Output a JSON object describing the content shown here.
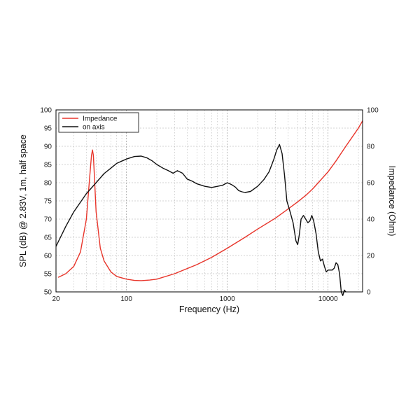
{
  "chart_data": {
    "type": "line",
    "xlabel": "Frequency (Hz)",
    "ylabel_left": "SPL (dB) @ 2.83V, 1m, half space",
    "ylabel_right": "Impedance (Ohm)",
    "x_scale": "log",
    "xlim": [
      20,
      22000
    ],
    "ylim_left": [
      50,
      100
    ],
    "ylim_right": [
      0,
      100
    ],
    "grid": true,
    "legend_position": "top-left",
    "x_ticks": [
      {
        "value": 20,
        "label": "20"
      },
      {
        "value": 100,
        "label": "100"
      },
      {
        "value": 1000,
        "label": "1000"
      },
      {
        "value": 10000,
        "label": "10000"
      }
    ],
    "y_ticks_left": [
      "50",
      "55",
      "60",
      "65",
      "70",
      "75",
      "80",
      "85",
      "90",
      "95",
      "100"
    ],
    "y_ticks_right": [
      "0",
      "20",
      "40",
      "60",
      "80",
      "100"
    ],
    "series": [
      {
        "name": "Impedance",
        "axis": "right",
        "color": "#e8352b",
        "x": [
          21,
          25,
          30,
          35,
          40,
          43,
          45,
          46,
          47,
          48,
          50,
          55,
          60,
          70,
          80,
          100,
          120,
          140,
          170,
          200,
          300,
          500,
          700,
          1000,
          1500,
          2000,
          3000,
          4000,
          5000,
          6000,
          7000,
          8000,
          10000,
          12000,
          15000,
          20000,
          22000
        ],
        "y": [
          8,
          10,
          14,
          22,
          40,
          62,
          75,
          78,
          75,
          64,
          44,
          24,
          17,
          11,
          8.5,
          7,
          6.3,
          6.2,
          6.5,
          7,
          10,
          15,
          19,
          24,
          30,
          34.5,
          40.5,
          45.5,
          49.5,
          53,
          56.5,
          60,
          66,
          72,
          80,
          90,
          94
        ]
      },
      {
        "name": "on axis",
        "axis": "left",
        "color": "#111111",
        "x": [
          20,
          25,
          30,
          40,
          50,
          60,
          70,
          80,
          100,
          120,
          140,
          160,
          180,
          200,
          230,
          260,
          290,
          320,
          360,
          400,
          450,
          500,
          600,
          700,
          800,
          900,
          1000,
          1100,
          1200,
          1300,
          1400,
          1500,
          1700,
          2000,
          2300,
          2600,
          2900,
          3100,
          3300,
          3500,
          3700,
          3900,
          4200,
          4500,
          4800,
          5000,
          5200,
          5400,
          5700,
          6000,
          6300,
          6600,
          6900,
          7200,
          7600,
          8000,
          8400,
          8800,
          9200,
          9600,
          10000,
          10500,
          11000,
          11500,
          12000,
          12500,
          13000,
          13500,
          14000,
          14500,
          15000
        ],
        "y": [
          62.5,
          68,
          72,
          77,
          80,
          82.5,
          84,
          85.3,
          86.5,
          87.2,
          87.3,
          86.8,
          86,
          85,
          84,
          83.3,
          82.6,
          83.3,
          82.6,
          81,
          80.4,
          79.7,
          79,
          78.7,
          79,
          79.3,
          80,
          79.5,
          78.8,
          77.8,
          77.5,
          77.3,
          77.6,
          79,
          80.8,
          83,
          86.5,
          89,
          90.5,
          88,
          82,
          75,
          72,
          69,
          64,
          63,
          66,
          70,
          71,
          70,
          69,
          69.5,
          71,
          69.5,
          66,
          61,
          58.5,
          59,
          57,
          55.5,
          56,
          56,
          56,
          56.5,
          58,
          57.5,
          55,
          50,
          49,
          50.5,
          50
        ]
      }
    ]
  }
}
